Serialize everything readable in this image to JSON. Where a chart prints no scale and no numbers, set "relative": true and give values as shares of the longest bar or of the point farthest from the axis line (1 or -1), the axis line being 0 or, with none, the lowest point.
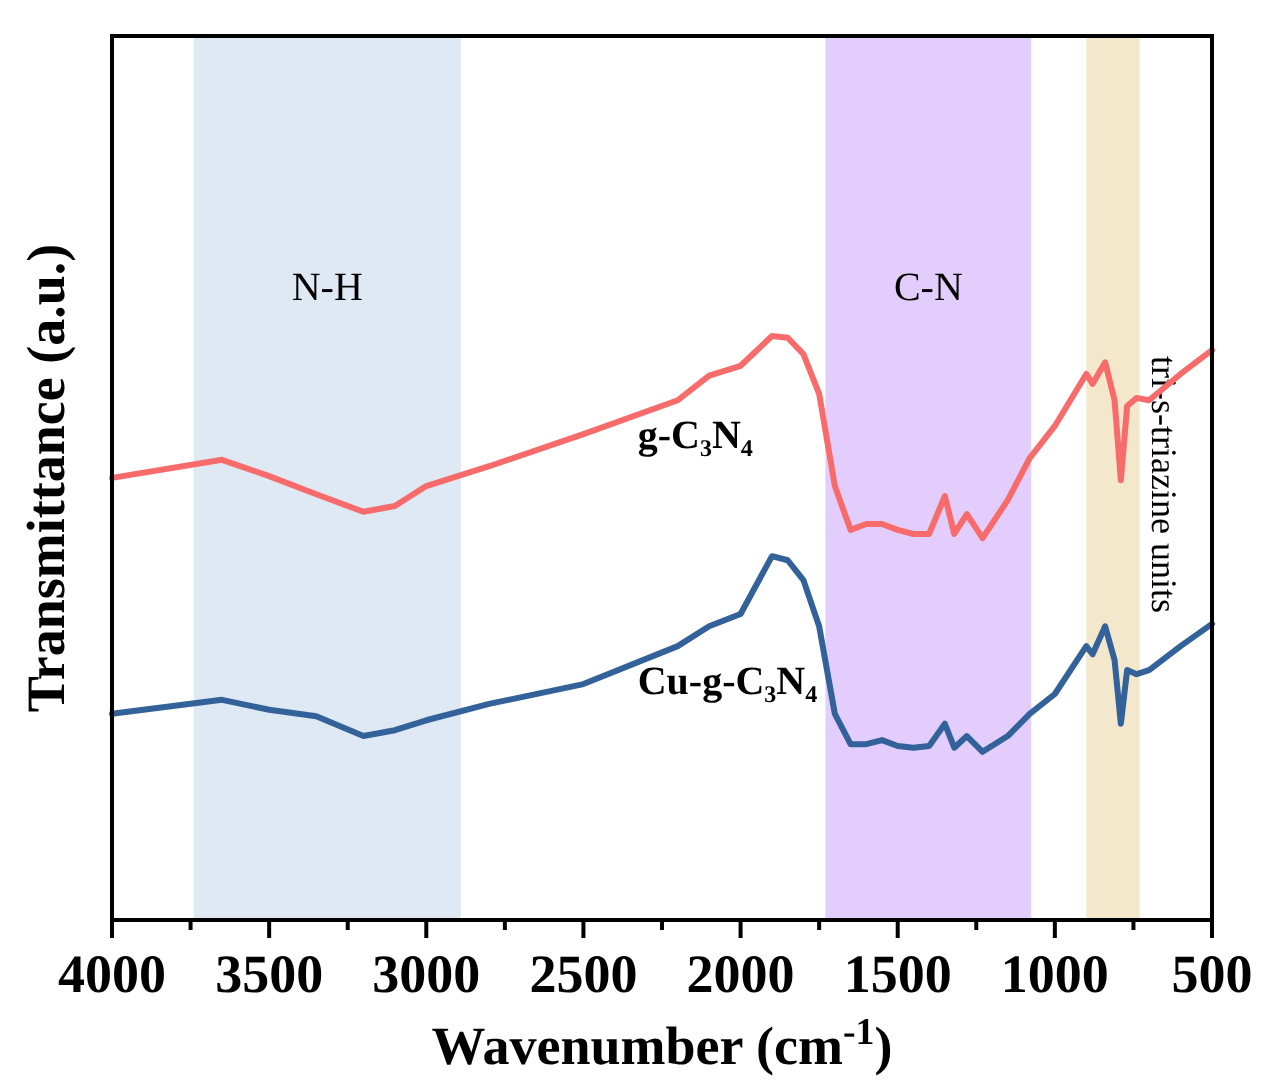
{
  "chart_data": {
    "type": "line",
    "relative": true,
    "xlabel": "Wavenumber (cm$^{-1}$)",
    "ylabel": "Transmittance (a.u.)",
    "xlim": [
      4000,
      500
    ],
    "xticks": [
      4000,
      {
        "value": 3750,
        "label": null
      },
      3500,
      {
        "value": 3250,
        "label": null
      },
      3000,
      {
        "value": 2750,
        "label": null
      },
      2500,
      {
        "value": 2250,
        "label": null
      },
      2000,
      {
        "value": 1750,
        "label": null
      },
      1500,
      {
        "value": 1250,
        "label": null
      },
      1000,
      {
        "value": 750,
        "label": null
      },
      500
    ],
    "grid": false,
    "legend": false,
    "marker": "none",
    "line_style": "solid",
    "bands": [
      {
        "axis": "x",
        "from": 3740,
        "to": 2890,
        "label": "N-H",
        "color": "#dfe9f4"
      },
      {
        "axis": "x",
        "from": 1730,
        "to": 1075,
        "label": "C-N",
        "color": "#e3cdfc"
      },
      {
        "axis": "x",
        "from": 900,
        "to": 730,
        "label": "tri-s-triazine units",
        "color": "#f3e8cc"
      }
    ],
    "x": [
      4000,
      3650,
      3500,
      3350,
      3200,
      3100,
      3000,
      2800,
      2500,
      2200,
      2100,
      2000,
      1900,
      1850,
      1800,
      1750,
      1700,
      1650,
      1600,
      1550,
      1500,
      1450,
      1400,
      1350,
      1320,
      1280,
      1230,
      1150,
      1080,
      1000,
      900,
      880,
      840,
      810,
      790,
      770,
      740,
      700,
      600,
      500
    ],
    "series": [
      {
        "name": "g-C₃N₄",
        "color": "#f86b6b",
        "values": [
          0.757,
          0.788,
          0.76,
          0.729,
          0.699,
          0.709,
          0.743,
          0.777,
          0.832,
          0.89,
          0.932,
          0.949,
          1.0,
          0.997,
          0.969,
          0.901,
          0.743,
          0.668,
          0.678,
          0.678,
          0.668,
          0.661,
          0.661,
          0.726,
          0.661,
          0.695,
          0.654,
          0.719,
          0.791,
          0.846,
          0.935,
          0.918,
          0.955,
          0.89,
          0.753,
          0.88,
          0.894,
          0.89,
          0.935,
          0.976
        ]
      },
      {
        "name": "Cu-g-C₃N₄",
        "color": "#336199",
        "values": [
          0.353,
          0.377,
          0.36,
          0.349,
          0.315,
          0.325,
          0.342,
          0.37,
          0.404,
          0.469,
          0.503,
          0.524,
          0.623,
          0.616,
          0.582,
          0.503,
          0.353,
          0.301,
          0.301,
          0.308,
          0.298,
          0.295,
          0.298,
          0.336,
          0.295,
          0.315,
          0.288,
          0.315,
          0.353,
          0.387,
          0.469,
          0.455,
          0.503,
          0.445,
          0.336,
          0.428,
          0.421,
          0.428,
          0.469,
          0.507
        ]
      }
    ]
  }
}
